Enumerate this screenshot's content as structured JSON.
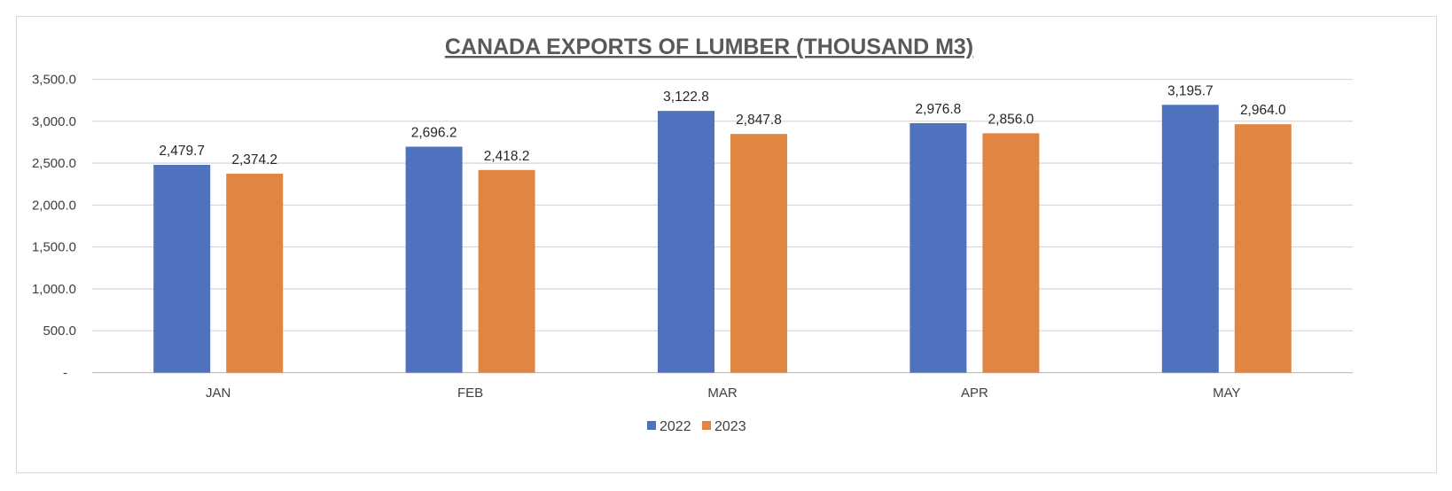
{
  "chart_data": {
    "type": "bar",
    "title": "CANADA EXPORTS OF LUMBER (THOUSAND M3)",
    "categories": [
      "JAN",
      "FEB",
      "MAR",
      "APR",
      "MAY"
    ],
    "series": [
      {
        "name": "2022",
        "color": "#4f72be",
        "values": [
          2479.7,
          2696.2,
          3122.8,
          2976.8,
          3195.7
        ],
        "labels": [
          "2,479.7",
          "2,696.2",
          "3,122.8",
          "2,976.8",
          "3,195.7"
        ]
      },
      {
        "name": "2023",
        "color": "#e08542",
        "values": [
          2374.2,
          2418.2,
          2847.8,
          2856.0,
          2964.0
        ],
        "labels": [
          "2,374.2",
          "2,418.2",
          "2,847.8",
          "2,856.0",
          "2,964.0"
        ]
      }
    ],
    "ylim": [
      0,
      3500
    ],
    "yticks": [
      0,
      500,
      1000,
      1500,
      2000,
      2500,
      3000,
      3500
    ],
    "ytick_labels": [
      "-",
      "500.0",
      "1,000.0",
      "1,500.0",
      "2,000.0",
      "2,500.0",
      "3,000.0",
      "3,500.0"
    ],
    "xlabel": "",
    "ylabel": "",
    "grid": true,
    "legend_position": "bottom"
  }
}
